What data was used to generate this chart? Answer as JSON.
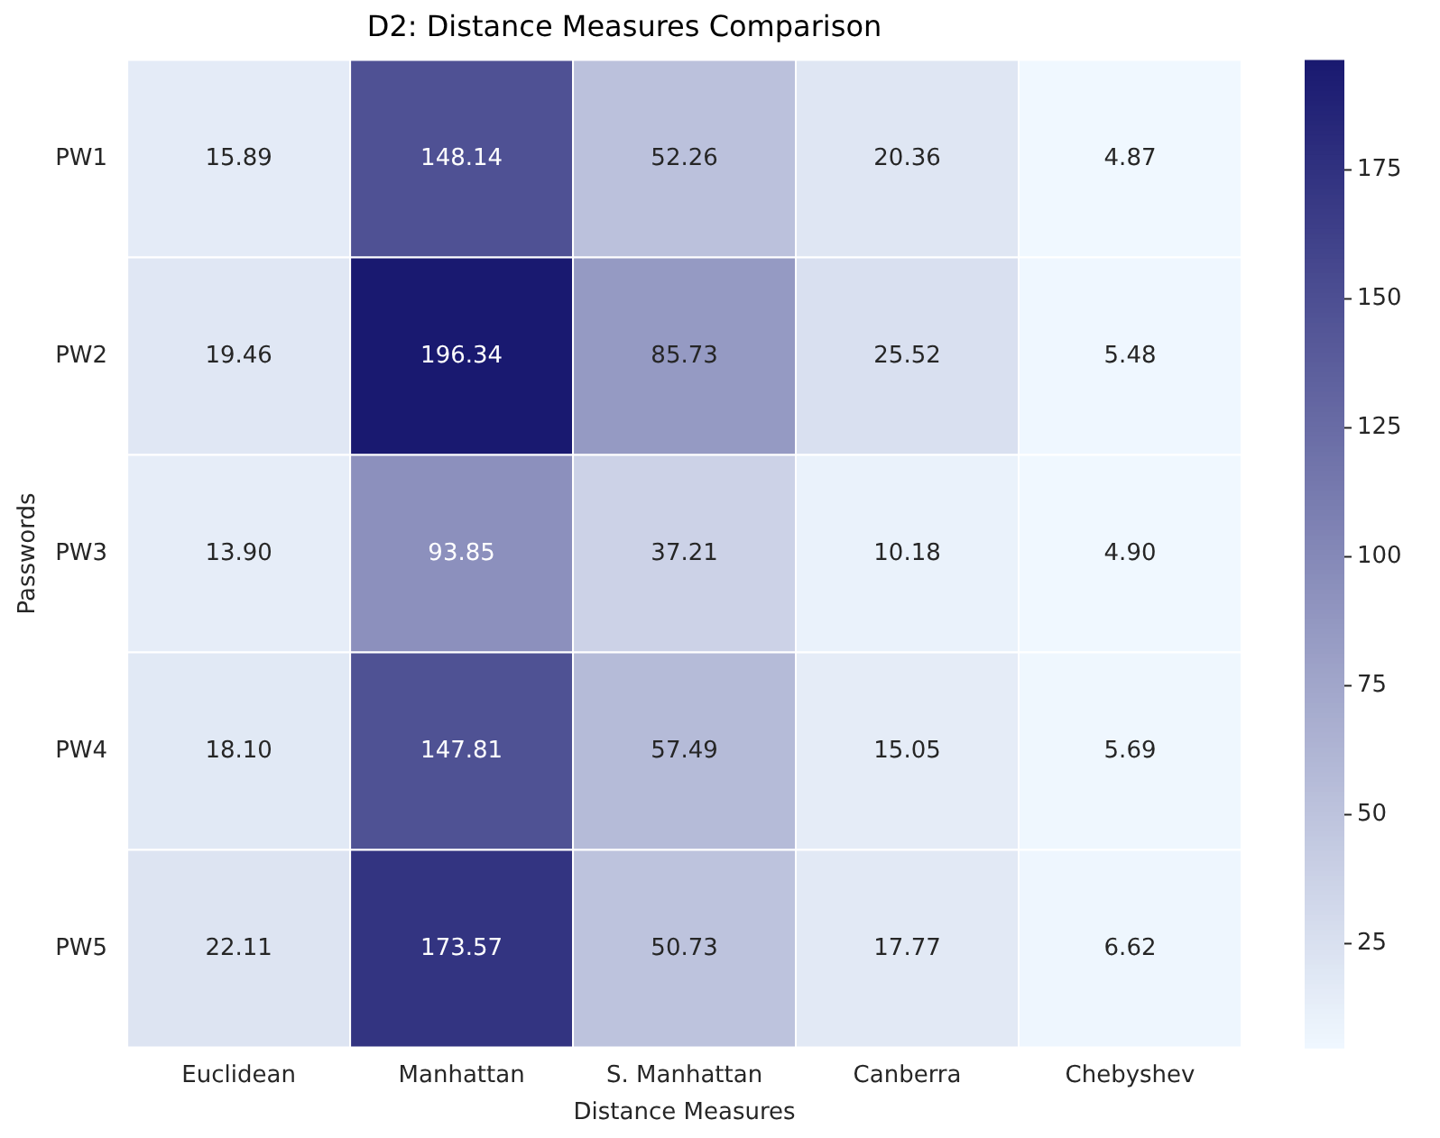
{
  "chart_data": {
    "type": "heatmap",
    "title": "D2: Distance Measures Comparison",
    "xlabel": "Distance Measures",
    "ylabel": "Passwords",
    "categories": [
      "Euclidean",
      "Manhattan",
      "S. Manhattan",
      "Canberra",
      "Chebyshev"
    ],
    "y_categories": [
      "PW1",
      "PW2",
      "PW3",
      "PW4",
      "PW5"
    ],
    "cells": [
      [
        15.89,
        148.14,
        52.26,
        20.36,
        4.87
      ],
      [
        19.46,
        196.34,
        85.73,
        25.52,
        5.48
      ],
      [
        13.9,
        93.85,
        37.21,
        10.18,
        4.9
      ],
      [
        18.1,
        147.81,
        57.49,
        15.05,
        5.69
      ],
      [
        22.11,
        173.57,
        50.73,
        17.77,
        6.62
      ]
    ],
    "cell_labels": [
      [
        "15.89",
        "148.14",
        "52.26",
        "20.36",
        "4.87"
      ],
      [
        "19.46",
        "196.34",
        "85.73",
        "25.52",
        "5.48"
      ],
      [
        "13.90",
        "93.85",
        "37.21",
        "10.18",
        "4.90"
      ],
      [
        "18.10",
        "147.81",
        "57.49",
        "15.05",
        "5.69"
      ],
      [
        "22.11",
        "173.57",
        "50.73",
        "17.77",
        "6.62"
      ]
    ],
    "clim": [
      4.87,
      196.34
    ],
    "cticks": [
      25,
      50,
      75,
      100,
      125,
      150,
      175
    ]
  }
}
